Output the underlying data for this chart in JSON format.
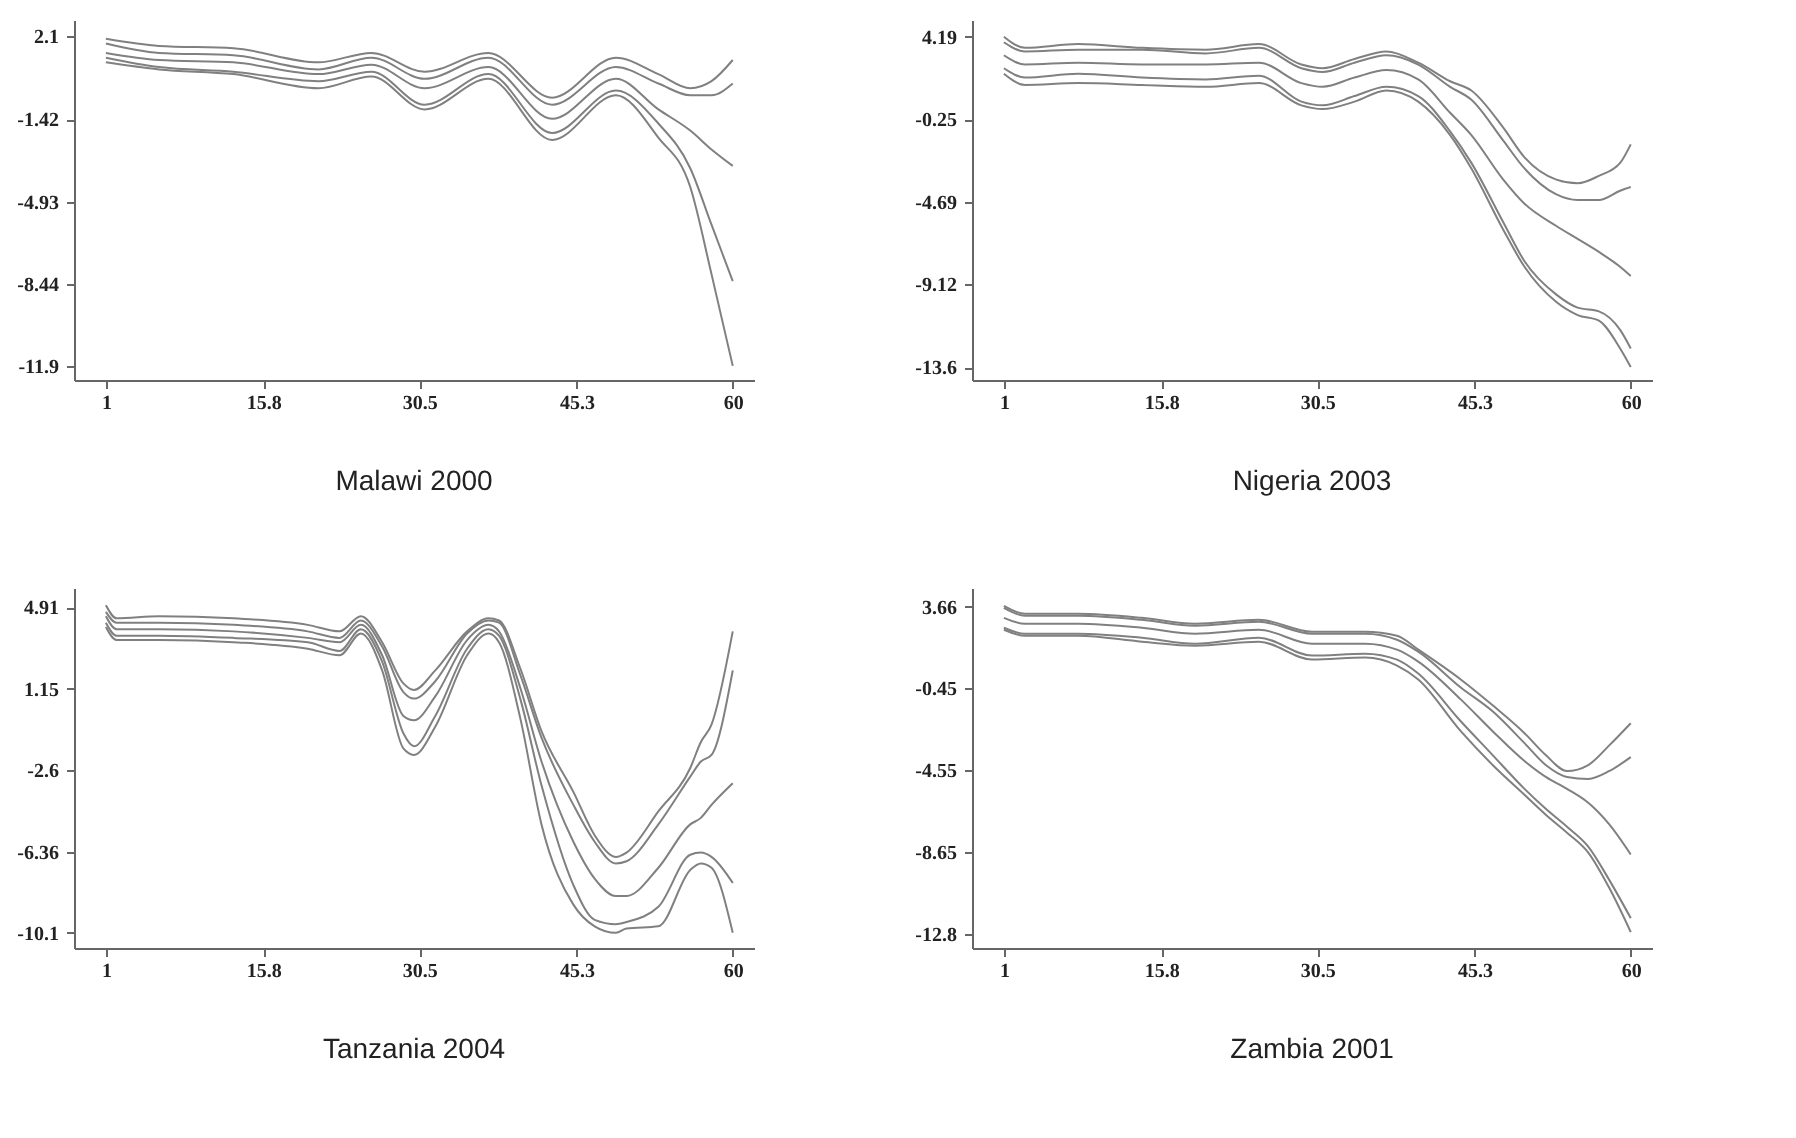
{
  "chart_data": [
    {
      "type": "line",
      "title": "Malawi 2000",
      "x": [
        1,
        6,
        13,
        21,
        26,
        31,
        37,
        43,
        49,
        53,
        56,
        58,
        60
      ],
      "xlim": [
        -2,
        62
      ],
      "xticks": [
        1,
        15.8,
        30.5,
        45.3,
        60
      ],
      "ylim": [
        -12.5,
        2.8
      ],
      "yticks": [
        -11.9,
        -8.44,
        -4.93,
        -1.42,
        2.1
      ],
      "grid": false,
      "series": [
        {
          "color": "#808080",
          "values": [
            2.0,
            1.7,
            1.6,
            1.0,
            1.4,
            0.6,
            1.4,
            -0.5,
            1.2,
            0.5,
            -0.1,
            0.2,
            1.1
          ]
        },
        {
          "color": "#808080",
          "values": [
            1.8,
            1.4,
            1.3,
            0.7,
            1.2,
            0.3,
            1.2,
            -0.8,
            0.8,
            0.1,
            -0.4,
            -0.4,
            0.1
          ]
        },
        {
          "color": "#808080",
          "values": [
            1.4,
            1.1,
            1.0,
            0.5,
            0.9,
            -0.1,
            0.8,
            -1.4,
            0.3,
            -1.0,
            -1.9,
            -2.7,
            -3.4
          ]
        },
        {
          "color": "#808080",
          "values": [
            1.2,
            0.8,
            0.6,
            0.2,
            0.6,
            -0.8,
            0.5,
            -2.0,
            -0.2,
            -1.6,
            -3.5,
            -5.9,
            -8.3
          ]
        },
        {
          "color": "#808080",
          "values": [
            1.0,
            0.7,
            0.5,
            -0.1,
            0.4,
            -1.0,
            0.3,
            -2.3,
            -0.4,
            -2.2,
            -4.3,
            -8.0,
            -11.9
          ]
        }
      ]
    },
    {
      "type": "line",
      "title": "Nigeria 2003",
      "x": [
        1,
        3,
        8,
        14,
        20,
        25,
        29,
        31,
        34,
        37,
        40,
        43,
        45,
        48,
        50,
        53,
        55,
        57,
        59,
        60
      ],
      "xlim": [
        -2,
        62
      ],
      "xticks": [
        1,
        15.8,
        30.5,
        45.3,
        60
      ],
      "ylim": [
        -14.3,
        5.1
      ],
      "yticks": [
        -13.6,
        -9.12,
        -4.69,
        -0.25,
        4.19
      ],
      "grid": false,
      "series": [
        {
          "color": "#808080",
          "values": [
            4.2,
            3.6,
            3.8,
            3.6,
            3.5,
            3.8,
            2.7,
            2.5,
            3.0,
            3.4,
            2.8,
            1.8,
            1.3,
            -0.7,
            -2.3,
            -3.5,
            -3.7,
            -3.3,
            -2.6,
            -1.6
          ]
        },
        {
          "color": "#808080",
          "values": [
            3.9,
            3.4,
            3.5,
            3.5,
            3.3,
            3.6,
            2.5,
            2.3,
            2.8,
            3.2,
            2.7,
            1.5,
            0.8,
            -1.4,
            -2.9,
            -4.3,
            -4.6,
            -4.6,
            -4.1,
            -3.9
          ]
        },
        {
          "color": "#808080",
          "values": [
            3.2,
            2.7,
            2.8,
            2.7,
            2.7,
            2.8,
            1.7,
            1.5,
            2.0,
            2.4,
            1.9,
            0.1,
            -1.1,
            -3.5,
            -4.8,
            -6.0,
            -6.7,
            -7.4,
            -8.2,
            -8.7
          ]
        },
        {
          "color": "#808080",
          "values": [
            2.5,
            2.0,
            2.2,
            2.0,
            1.9,
            2.1,
            0.7,
            0.5,
            1.0,
            1.5,
            1.0,
            -0.9,
            -2.6,
            -5.8,
            -7.9,
            -9.7,
            -10.4,
            -10.6,
            -11.6,
            -12.6
          ]
        },
        {
          "color": "#808080",
          "values": [
            2.2,
            1.6,
            1.7,
            1.6,
            1.5,
            1.7,
            0.5,
            0.3,
            0.7,
            1.3,
            0.7,
            -1.1,
            -2.9,
            -6.2,
            -8.2,
            -10.1,
            -10.8,
            -11.1,
            -12.6,
            -13.6
          ]
        }
      ]
    },
    {
      "type": "line",
      "title": "Tanzania 2004",
      "x": [
        1,
        2,
        6,
        13,
        20,
        23,
        25,
        27,
        29,
        30,
        32,
        35,
        37,
        38,
        40,
        42,
        45,
        47,
        49,
        50,
        53,
        56,
        57,
        58,
        60
      ],
      "xlim": [
        -2,
        62
      ],
      "xticks": [
        1,
        15.8,
        30.5,
        45.3,
        60
      ],
      "ylim": [
        -10.8,
        5.8
      ],
      "yticks": [
        -10.1,
        -6.36,
        -2.6,
        1.15,
        4.91
      ],
      "grid": false,
      "series": [
        {
          "color": "#808080",
          "values": [
            5.0,
            4.4,
            4.5,
            4.4,
            4.1,
            3.8,
            4.5,
            3.3,
            1.4,
            1.1,
            2.0,
            3.8,
            4.4,
            4.3,
            2.1,
            -0.8,
            -3.6,
            -5.6,
            -6.6,
            -6.4,
            -4.5,
            -2.5,
            -1.3,
            -0.5,
            3.8
          ]
        },
        {
          "color": "#808080",
          "values": [
            4.7,
            4.2,
            4.2,
            4.1,
            3.8,
            3.5,
            4.3,
            3.1,
            1.0,
            0.7,
            1.5,
            3.7,
            4.3,
            4.2,
            1.8,
            -1.1,
            -4.2,
            -5.9,
            -6.9,
            -6.8,
            -5.1,
            -2.9,
            -2.2,
            -1.9,
            2.0
          ]
        },
        {
          "color": "#808080",
          "values": [
            4.5,
            3.9,
            3.9,
            3.8,
            3.5,
            3.3,
            4.1,
            2.7,
            -0.1,
            -0.3,
            0.8,
            3.4,
            4.1,
            3.8,
            1.2,
            -2.2,
            -5.9,
            -7.6,
            -8.4,
            -8.4,
            -7.1,
            -5.1,
            -4.8,
            -4.2,
            -3.2
          ]
        },
        {
          "color": "#808080",
          "values": [
            4.2,
            3.6,
            3.6,
            3.5,
            3.3,
            2.9,
            3.9,
            2.4,
            -0.9,
            -1.5,
            -0.1,
            3.0,
            3.9,
            3.6,
            0.7,
            -3.3,
            -7.9,
            -9.5,
            -9.7,
            -9.6,
            -8.9,
            -6.5,
            -6.4,
            -6.6,
            -7.8
          ]
        },
        {
          "color": "#808080",
          "values": [
            4.0,
            3.4,
            3.4,
            3.3,
            3.0,
            2.7,
            3.7,
            2.0,
            -1.6,
            -1.9,
            -0.6,
            2.7,
            3.7,
            3.3,
            -0.2,
            -5.1,
            -8.8,
            -9.8,
            -10.1,
            -9.9,
            -9.8,
            -7.2,
            -6.9,
            -7.1,
            -10.1
          ]
        }
      ]
    },
    {
      "type": "line",
      "title": "Zambia 2001",
      "x": [
        1,
        3,
        8,
        14,
        19,
        25,
        30,
        35,
        38,
        40,
        44,
        47,
        50,
        52,
        54,
        56,
        58,
        60
      ],
      "xlim": [
        -2,
        62
      ],
      "xticks": [
        1,
        15.8,
        30.5,
        45.3,
        60
      ],
      "ylim": [
        -13.5,
        4.6
      ],
      "yticks": [
        -12.8,
        -8.65,
        -4.55,
        -0.45,
        3.66
      ],
      "grid": false,
      "series": [
        {
          "color": "#808080",
          "values": [
            3.7,
            3.3,
            3.3,
            3.1,
            2.8,
            3.0,
            2.4,
            2.4,
            2.2,
            1.5,
            0.0,
            -1.3,
            -2.7,
            -3.8,
            -4.6,
            -4.3,
            -3.3,
            -2.2
          ]
        },
        {
          "color": "#808080",
          "values": [
            3.6,
            3.2,
            3.2,
            3.0,
            2.7,
            2.9,
            2.3,
            2.3,
            2.0,
            1.4,
            -0.4,
            -1.6,
            -3.2,
            -4.3,
            -4.9,
            -5.0,
            -4.6,
            -3.9
          ]
        },
        {
          "color": "#808080",
          "values": [
            3.1,
            2.8,
            2.8,
            2.6,
            2.3,
            2.5,
            1.8,
            1.8,
            1.5,
            0.9,
            -1.0,
            -2.6,
            -4.1,
            -4.9,
            -5.5,
            -6.2,
            -7.3,
            -8.8
          ]
        },
        {
          "color": "#808080",
          "values": [
            2.6,
            2.3,
            2.3,
            2.1,
            1.8,
            2.1,
            1.2,
            1.3,
            1.0,
            0.3,
            -2.1,
            -3.8,
            -5.5,
            -6.5,
            -7.4,
            -8.4,
            -10.1,
            -12.0
          ]
        },
        {
          "color": "#808080",
          "values": [
            2.5,
            2.2,
            2.2,
            1.9,
            1.7,
            1.9,
            1.0,
            1.1,
            0.7,
            0.0,
            -2.6,
            -4.3,
            -5.8,
            -6.8,
            -7.7,
            -8.7,
            -10.5,
            -12.7
          ]
        }
      ]
    }
  ]
}
